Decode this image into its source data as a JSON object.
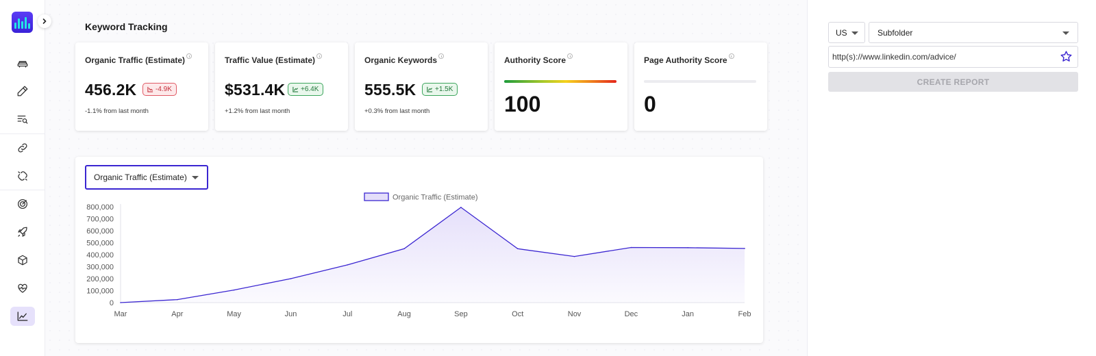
{
  "page": {
    "title": "Keyword Tracking"
  },
  "sidebar": {
    "items": [
      {
        "icon": "car-icon"
      },
      {
        "icon": "pencil-icon"
      },
      {
        "icon": "list-search-icon"
      },
      {
        "icon": "link-icon"
      },
      {
        "icon": "broken-link-icon"
      },
      {
        "icon": "target-icon"
      },
      {
        "icon": "rocket-icon"
      },
      {
        "icon": "cube-icon"
      },
      {
        "icon": "heart-pulse-icon"
      },
      {
        "icon": "trend-chart-icon",
        "active": true
      }
    ]
  },
  "cards": [
    {
      "label": "Organic Traffic (Estimate)",
      "value": "456.2K",
      "delta": "-4.9K",
      "trend": "down",
      "sub": "-1.1% from last month"
    },
    {
      "label": "Traffic Value (Estimate)",
      "value": "$531.4K",
      "delta": "+6.4K",
      "trend": "up",
      "sub": "+1.2% from last month"
    },
    {
      "label": "Organic Keywords",
      "value": "555.5K",
      "delta": "+1.5K",
      "trend": "up",
      "sub": "+0.3% from last month"
    },
    {
      "label": "Authority Score",
      "value": "100"
    },
    {
      "label": "Page Authority Score",
      "value": "0"
    }
  ],
  "chart_panel": {
    "metric_select": "Organic Traffic (Estimate)"
  },
  "chart_data": {
    "type": "area",
    "categories": [
      "Mar",
      "Apr",
      "May",
      "Jun",
      "Jul",
      "Aug",
      "Sep",
      "Oct",
      "Nov",
      "Dec",
      "Jan",
      "Feb"
    ],
    "series": [
      {
        "name": "Organic Traffic (Estimate)",
        "values": [
          0,
          25000,
          105000,
          200000,
          315000,
          450000,
          795000,
          450000,
          385000,
          460000,
          458000,
          452000
        ]
      }
    ],
    "yticks": [
      "800,000",
      "700,000",
      "600,000",
      "500,000",
      "400,000",
      "300,000",
      "200,000",
      "100,000",
      "0"
    ],
    "ylim": [
      0,
      800000
    ],
    "legend_position": "top-center",
    "grid": false,
    "colors": {
      "line": "#3a25d1",
      "fill": "#e4defa"
    }
  },
  "right_panel": {
    "country": "US",
    "mode": "Subfolder",
    "url": "http(s)://www.linkedin.com/advice/",
    "create_label": "CREATE REPORT"
  }
}
